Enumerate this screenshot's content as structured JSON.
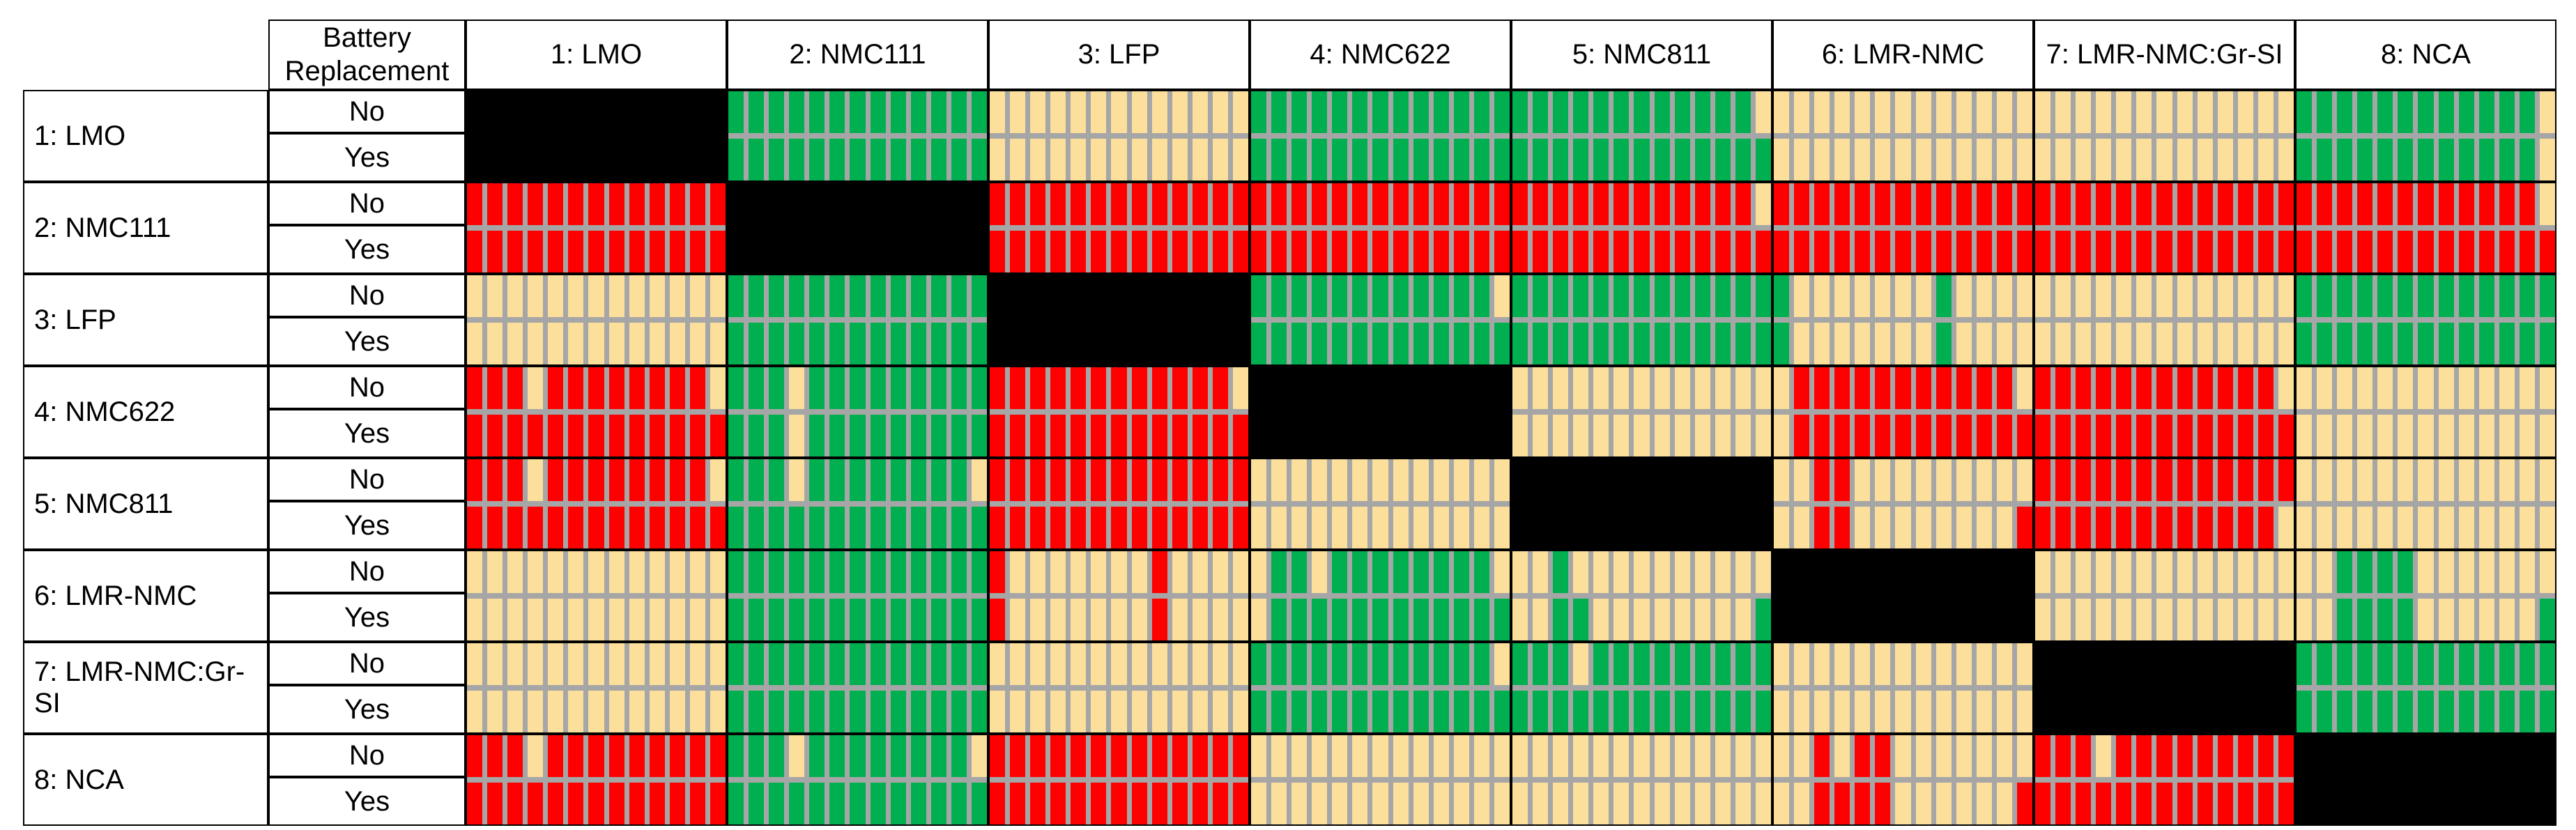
{
  "labels": {
    "no": "No",
    "yes": "Yes"
  },
  "header": {
    "battery_replacement": "Battery\nReplacement"
  },
  "colors": {
    "grid_line": "#000000",
    "stripe_gap": "#A6A6A6",
    "background": "#FFFFFF"
  },
  "chart_data": {
    "type": "heatmap",
    "stripes_per_cell": 13,
    "replacement_options": [
      "No",
      "Yes"
    ],
    "color_key": {
      "G": "#00B050",
      "T": "#FBDF9B",
      "R": "#FF0000",
      "B": "#000000"
    },
    "columns": [
      "1: LMO",
      "2: NMC111",
      "3: LFP",
      "4: NMC622",
      "5: NMC811",
      "6: LMR-NMC",
      "7: LMR-NMC:Gr-SI",
      "8: NCA"
    ],
    "rows": [
      {
        "label": "1: LMO",
        "no": [
          "BBBBBBBBBBBBB",
          "GGGGGGGGGGGGG",
          "TTTTTTTTTTTTT",
          "GGGGGGGGGGGGG",
          "GGGGGGGGGGGGT",
          "TTTTTTTTTTTTT",
          "TTTTTTTTTTTTT",
          "GGGGGGGGGGGGT"
        ],
        "yes": [
          "BBBBBBBBBBBBB",
          "GGGGGGGGGGGGG",
          "TTTTTTTTTTTTT",
          "GGGGGGGGGGGGG",
          "GGGGGGGGGGGGG",
          "TTTTTTTTTTTTT",
          "TTTTTTTTTTTTT",
          "GGGGGGGGGGGGT"
        ]
      },
      {
        "label": "2: NMC111",
        "no": [
          "RRRRRRRRRRRRR",
          "BBBBBBBBBBBBB",
          "RRRRRRRRRRRRR",
          "RRRRRRRRRRRRR",
          "RRRRRRRRRRRRT",
          "RRRRRRRRRRRRR",
          "RRRRRRRRRRRRR",
          "RRRRRRRRRRRRT"
        ],
        "yes": [
          "RRRRRRRRRRRRR",
          "BBBBBBBBBBBBB",
          "RRRRRRRRRRRRR",
          "RRRRRRRRRRRRR",
          "RRRRRRRRRRRRR",
          "RRRRRRRRRRRRR",
          "RRRRRRRRRRRRR",
          "RRRRRRRRRRRRR"
        ]
      },
      {
        "label": "3: LFP",
        "no": [
          "TTTTTTTTTTTTT",
          "GGGGGGGGGGGGG",
          "BBBBBBBBBBBBB",
          "GGGGGGGGGGGGT",
          "GGGGGGGGGGGGG",
          "GTTTTTTTGTTTT",
          "TTTTTTTTTTTTT",
          "GGGGGGGGGGGGG"
        ],
        "yes": [
          "TTTTTTTTTTTTT",
          "GGGGGGGGGGGGG",
          "BBBBBBBBBBBBB",
          "GGGGGGGGGGGGG",
          "GGGGGGGGGGGGG",
          "GTTTTTTTGTTTT",
          "TTTTTTTTTTTTT",
          "GGGGGGGGGGGGG"
        ]
      },
      {
        "label": "4: NMC622",
        "no": [
          "RRRTRRRRRRRRT",
          "GGGTGGGGGGGGG",
          "RRRRRRRRRRRRT",
          "BBBBBBBBBBBBB",
          "TTTTTTTTTTTTT",
          "TRRRRRRRRRRRT",
          "RRRRRRRRRRRRT",
          "TTTTTTTTTTTTT"
        ],
        "yes": [
          "RRRRRRRRRRRRR",
          "GGGTGGGGGGGGG",
          "RRRRRRRRRRRRR",
          "BBBBBBBBBBBBB",
          "TTTTTTTTTTTTT",
          "TRRRRRRRRRRRR",
          "RRRRRRRRRRRRR",
          "TTTTTTTTTTTTT"
        ]
      },
      {
        "label": "5: NMC811",
        "no": [
          "RRRTRRRRRRRRT",
          "GGGTGGGGGGGGT",
          "RRRRRRRRRRRRR",
          "TTTTTTTTTTTTT",
          "BBBBBBBBBBBBB",
          "TTRRTTTTTTTTT",
          "RRRRRRRRRRRRR",
          "TTTTTTTTTTTTT"
        ],
        "yes": [
          "RRRRRRRRRRRRR",
          "GGGGGGGGGGGGG",
          "RRRRRRRRRRRRR",
          "TTTTTTTTTTTTT",
          "BBBBBBBBBBBBB",
          "TTRRTTTTTTTTR",
          "RRRRRRRRRRRRT",
          "TTTTTTTTTTTTT"
        ]
      },
      {
        "label": "6: LMR-NMC",
        "no": [
          "TTTTTTTTTTTTT",
          "GGGGGGGGGGGGG",
          "RTTTTTTTRTTTT",
          "TGGTGGGGGGGGT",
          "TTGTTTTTTTTTT",
          "BBBBBBBBBBBBB",
          "TTTTTTTTTTTTT",
          "TTGGGGTTTTTTT"
        ],
        "yes": [
          "TTTTTTTTTTTTT",
          "GGGGGGGGGGGGG",
          "RTTTTTTTRTTTT",
          "TGGGGGGGGGGGG",
          "TTGGTTTTTTTTG",
          "BBBBBBBBBBBBB",
          "TTTTTTTTTTTTT",
          "TTGGGGTTTTTTG"
        ]
      },
      {
        "label": "7: LMR-NMC:Gr-SI",
        "no": [
          "TTTTTTTTTTTTT",
          "GGGGGGGGGGGGG",
          "TTTTTTTTTTTTT",
          "GGGGGGGGGGGGT",
          "GGGTGGGGGGGGG",
          "TTTTTTTTTTTTT",
          "BBBBBBBBBBBBB",
          "GGGGGGGGGGGGG"
        ],
        "yes": [
          "TTTTTTTTTTTTT",
          "GGGGGGGGGGGGG",
          "TTTTTTTTTTTTT",
          "GGGGGGGGGGGGG",
          "GGGGGGGGGGGGG",
          "TTTTTTTTTTTTT",
          "BBBBBBBBBBBBB",
          "GGGGGGGGGGGGG"
        ]
      },
      {
        "label": "8: NCA",
        "no": [
          "RRRTRRRRRRRRR",
          "GGGTGGGGGGGGT",
          "RRRRRRRRRRRRR",
          "TTTTTTTTTTTTT",
          "TTTTTTTTTTTTT",
          "TTRTRRTTTTTTT",
          "RRRTRRRRRRRRR",
          "BBBBBBBBBBBBB"
        ],
        "yes": [
          "RRRRRRRRRRRRR",
          "GGGGGGGGGGGGG",
          "RRRRRRRRRRRRR",
          "TTTTTTTTTTTTT",
          "TTTTTTTTTTTTT",
          "TTRRRRTTTTTTR",
          "RRRRRRRRRRRRR",
          "BBBBBBBBBBBBB"
        ]
      }
    ]
  }
}
